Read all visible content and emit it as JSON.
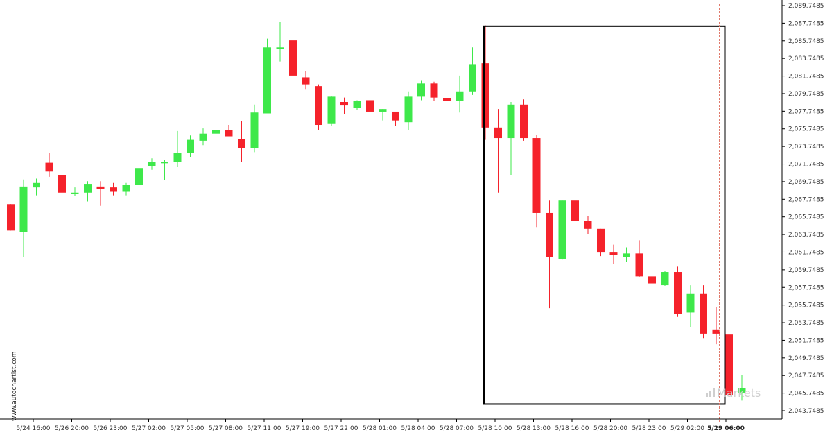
{
  "chart_data": {
    "type": "candlestick",
    "y_ticks": [
      "2,043.7485",
      "2,045.7485",
      "2,047.7485",
      "2,049.7485",
      "2,051.7485",
      "2,053.7485",
      "2,055.7485",
      "2,057.7485",
      "2,059.7485",
      "2,061.7485",
      "2,063.7485",
      "2,065.7485",
      "2,067.7485",
      "2,069.7485",
      "2,071.7485",
      "2,073.7485",
      "2,075.7485",
      "2,077.7485",
      "2,079.7485",
      "2,081.7485",
      "2,083.7485",
      "2,085.7485",
      "2,087.7485",
      "2,089.7485"
    ],
    "ylim": [
      2043.5,
      2090.0
    ],
    "x_ticks": [
      {
        "index": 1,
        "label": "5/24 16:00"
      },
      {
        "index": 4,
        "label": "5/26 20:00"
      },
      {
        "index": 7,
        "label": "5/26 23:00"
      },
      {
        "index": 10,
        "label": "5/27 02:00"
      },
      {
        "index": 13,
        "label": "5/27 05:00"
      },
      {
        "index": 16,
        "label": "5/27 08:00"
      },
      {
        "index": 19,
        "label": "5/27 11:00"
      },
      {
        "index": 22,
        "label": "5/27 19:00"
      },
      {
        "index": 25,
        "label": "5/27 22:00"
      },
      {
        "index": 28,
        "label": "5/28 01:00"
      },
      {
        "index": 31,
        "label": "5/28 04:00"
      },
      {
        "index": 34,
        "label": "5/28 07:00"
      },
      {
        "index": 37,
        "label": "5/28 10:00"
      },
      {
        "index": 40,
        "label": "5/28 13:00"
      },
      {
        "index": 43,
        "label": "5/28 16:00"
      },
      {
        "index": 46,
        "label": "5/28 20:00"
      },
      {
        "index": 49,
        "label": "5/28 23:00"
      },
      {
        "index": 52,
        "label": "5/29 02:00"
      },
      {
        "index": 55,
        "label": "5/29 06:00",
        "bold": true
      }
    ],
    "candles": [
      {
        "o": 2067.2,
        "h": 2067.2,
        "l": 2064.2,
        "c": 2064.2
      },
      {
        "o": 2064.0,
        "h": 2070.0,
        "l": 2061.2,
        "c": 2069.2
      },
      {
        "o": 2069.1,
        "h": 2070.1,
        "l": 2068.2,
        "c": 2069.6
      },
      {
        "o": 2071.9,
        "h": 2073.0,
        "l": 2070.3,
        "c": 2070.9
      },
      {
        "o": 2070.5,
        "h": 2070.5,
        "l": 2067.6,
        "c": 2068.5
      },
      {
        "o": 2068.5,
        "h": 2069.1,
        "l": 2068.1,
        "c": 2068.5
      },
      {
        "o": 2068.5,
        "h": 2069.8,
        "l": 2067.5,
        "c": 2069.5
      },
      {
        "o": 2069.2,
        "h": 2069.8,
        "l": 2067.0,
        "c": 2068.9
      },
      {
        "o": 2069.1,
        "h": 2069.6,
        "l": 2068.2,
        "c": 2068.6
      },
      {
        "o": 2068.6,
        "h": 2069.6,
        "l": 2068.2,
        "c": 2069.4
      },
      {
        "o": 2069.4,
        "h": 2071.5,
        "l": 2069.1,
        "c": 2071.3
      },
      {
        "o": 2071.5,
        "h": 2072.4,
        "l": 2071.1,
        "c": 2072.0
      },
      {
        "o": 2072.0,
        "h": 2072.2,
        "l": 2069.9,
        "c": 2072.0
      },
      {
        "o": 2072.0,
        "h": 2075.5,
        "l": 2071.4,
        "c": 2073.0
      },
      {
        "o": 2073.0,
        "h": 2075.0,
        "l": 2072.5,
        "c": 2074.5
      },
      {
        "o": 2074.4,
        "h": 2075.8,
        "l": 2073.9,
        "c": 2075.2
      },
      {
        "o": 2075.2,
        "h": 2075.8,
        "l": 2074.6,
        "c": 2075.6
      },
      {
        "o": 2075.6,
        "h": 2076.2,
        "l": 2074.9,
        "c": 2074.9
      },
      {
        "o": 2074.6,
        "h": 2076.6,
        "l": 2072.0,
        "c": 2073.6
      },
      {
        "o": 2073.6,
        "h": 2078.5,
        "l": 2073.1,
        "c": 2077.6
      },
      {
        "o": 2077.5,
        "h": 2086.0,
        "l": 2077.5,
        "c": 2085.0
      },
      {
        "o": 2085.0,
        "h": 2087.9,
        "l": 2083.4,
        "c": 2085.0
      },
      {
        "o": 2085.8,
        "h": 2086.0,
        "l": 2079.6,
        "c": 2081.8
      },
      {
        "o": 2081.6,
        "h": 2082.3,
        "l": 2080.2,
        "c": 2080.8
      },
      {
        "o": 2080.6,
        "h": 2080.8,
        "l": 2075.6,
        "c": 2076.2
      },
      {
        "o": 2076.3,
        "h": 2079.5,
        "l": 2076.1,
        "c": 2079.4
      },
      {
        "o": 2078.8,
        "h": 2079.3,
        "l": 2077.4,
        "c": 2078.4
      },
      {
        "o": 2078.1,
        "h": 2079.0,
        "l": 2077.9,
        "c": 2078.9
      },
      {
        "o": 2079.0,
        "h": 2079.0,
        "l": 2077.4,
        "c": 2077.7
      },
      {
        "o": 2077.7,
        "h": 2078.0,
        "l": 2076.7,
        "c": 2078.0
      },
      {
        "o": 2077.7,
        "h": 2077.7,
        "l": 2076.1,
        "c": 2076.7
      },
      {
        "o": 2076.5,
        "h": 2080.0,
        "l": 2075.6,
        "c": 2079.4
      },
      {
        "o": 2079.4,
        "h": 2081.2,
        "l": 2079.0,
        "c": 2080.9
      },
      {
        "o": 2080.9,
        "h": 2081.1,
        "l": 2078.9,
        "c": 2079.3
      },
      {
        "o": 2079.2,
        "h": 2079.4,
        "l": 2075.6,
        "c": 2078.9
      },
      {
        "o": 2078.9,
        "h": 2081.8,
        "l": 2077.6,
        "c": 2080.0
      },
      {
        "o": 2080.0,
        "h": 2085.0,
        "l": 2079.6,
        "c": 2083.1
      },
      {
        "o": 2083.2,
        "h": 2087.5,
        "l": 2074.5,
        "c": 2075.9
      },
      {
        "o": 2075.9,
        "h": 2078.0,
        "l": 2068.5,
        "c": 2074.7
      },
      {
        "o": 2074.7,
        "h": 2078.8,
        "l": 2070.5,
        "c": 2078.5
      },
      {
        "o": 2078.5,
        "h": 2079.1,
        "l": 2074.4,
        "c": 2074.7
      },
      {
        "o": 2074.7,
        "h": 2075.1,
        "l": 2064.6,
        "c": 2066.2
      },
      {
        "o": 2066.2,
        "h": 2067.6,
        "l": 2055.4,
        "c": 2061.2
      },
      {
        "o": 2061.0,
        "h": 2067.6,
        "l": 2060.9,
        "c": 2067.6
      },
      {
        "o": 2067.6,
        "h": 2069.6,
        "l": 2064.4,
        "c": 2065.3
      },
      {
        "o": 2065.3,
        "h": 2065.8,
        "l": 2063.8,
        "c": 2064.4
      },
      {
        "o": 2064.4,
        "h": 2064.4,
        "l": 2061.3,
        "c": 2061.7
      },
      {
        "o": 2061.7,
        "h": 2062.6,
        "l": 2060.4,
        "c": 2061.4
      },
      {
        "o": 2061.2,
        "h": 2062.3,
        "l": 2060.6,
        "c": 2061.6
      },
      {
        "o": 2061.6,
        "h": 2063.1,
        "l": 2058.9,
        "c": 2059.0
      },
      {
        "o": 2059.0,
        "h": 2059.2,
        "l": 2057.6,
        "c": 2058.2
      },
      {
        "o": 2058.0,
        "h": 2059.6,
        "l": 2057.9,
        "c": 2059.5
      },
      {
        "o": 2059.5,
        "h": 2060.1,
        "l": 2054.4,
        "c": 2054.7
      },
      {
        "o": 2054.9,
        "h": 2058.0,
        "l": 2053.2,
        "c": 2057.0
      },
      {
        "o": 2057.0,
        "h": 2058.0,
        "l": 2052.0,
        "c": 2052.5
      },
      {
        "o": 2052.9,
        "h": 2055.5,
        "l": 2051.3,
        "c": 2052.5
      },
      {
        "o": 2052.4,
        "h": 2053.1,
        "l": 2044.6,
        "c": 2045.5
      },
      {
        "o": 2045.8,
        "h": 2047.8,
        "l": 2044.9,
        "c": 2046.3
      }
    ],
    "highlight_box": {
      "start_index": 37,
      "end_index": 56,
      "y_top": 2087.4,
      "y_bottom": 2044.5
    },
    "current_time_index": 56,
    "colors": {
      "up": "#3ee84a",
      "down": "#f5222b",
      "box": "#000000",
      "current_time_line": "#e0796b",
      "brand_text": "#cfcfcf"
    },
    "watermark_side": "www.autochartist.com",
    "watermark_brand": "Markets"
  }
}
